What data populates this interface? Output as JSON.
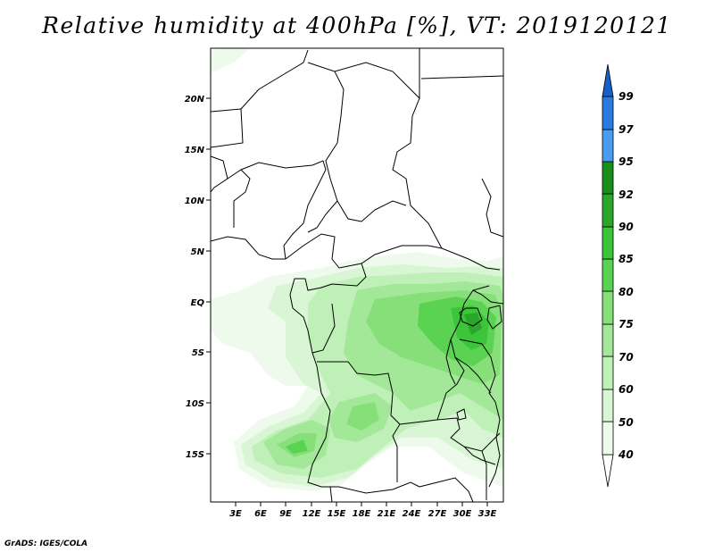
{
  "title": "Relative humidity at 400hPa [%], VT: 2019120121",
  "credit": "GrADS: IGES/COLA",
  "colors": {
    "c40": "#eefbec",
    "c50": "#d8f6d3",
    "c60": "#bff0b7",
    "c70": "#a3e898",
    "c75": "#86df78",
    "c80": "#5ad352",
    "c85": "#3cc43a",
    "c90": "#2aa62a",
    "c92": "#1a8e1a",
    "c95": "#4a9cef",
    "c97": "#2a7be0",
    "c99": "#1660c8",
    "boundary": "#000000"
  },
  "map": {
    "lat_labels": [
      "20N",
      "15N",
      "10N",
      "5N",
      "EQ",
      "5S",
      "10S",
      "15S"
    ],
    "lon_labels": [
      "3E",
      "6E",
      "9E",
      "12E",
      "15E",
      "18E",
      "21E",
      "24E",
      "27E",
      "30E",
      "33E"
    ]
  },
  "colorbar": {
    "labels": [
      "40",
      "50",
      "60",
      "70",
      "75",
      "80",
      "85",
      "90",
      "92",
      "95",
      "97",
      "99"
    ]
  }
}
